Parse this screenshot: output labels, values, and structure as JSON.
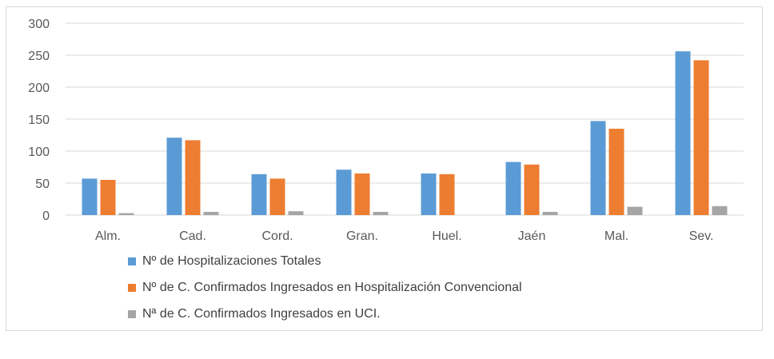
{
  "chart_data": {
    "type": "bar",
    "title": "",
    "xlabel": "",
    "ylabel": "",
    "ylim": [
      0,
      300
    ],
    "yticks": [
      0,
      50,
      100,
      150,
      200,
      250,
      300
    ],
    "grid": true,
    "legend_position": "bottom",
    "categories": [
      "Alm.",
      "Cad.",
      "Cord.",
      "Gran.",
      "Huel.",
      "Jaén",
      "Mal.",
      "Sev."
    ],
    "series": [
      {
        "name": "Nº de Hospitalizaciones Totales",
        "color": "#5b9bd5",
        "values": [
          57,
          121,
          64,
          71,
          65,
          83,
          147,
          256
        ]
      },
      {
        "name": "Nº de C. Confirmados Ingresados en Hospitalización Convencional",
        "color": "#ed7d31",
        "values": [
          55,
          117,
          57,
          65,
          64,
          79,
          135,
          242
        ]
      },
      {
        "name": "Nª de C. Confirmados Ingresados en UCI.",
        "color": "#a5a5a5",
        "values": [
          3,
          5,
          6,
          5,
          0,
          5,
          13,
          14
        ]
      }
    ]
  }
}
